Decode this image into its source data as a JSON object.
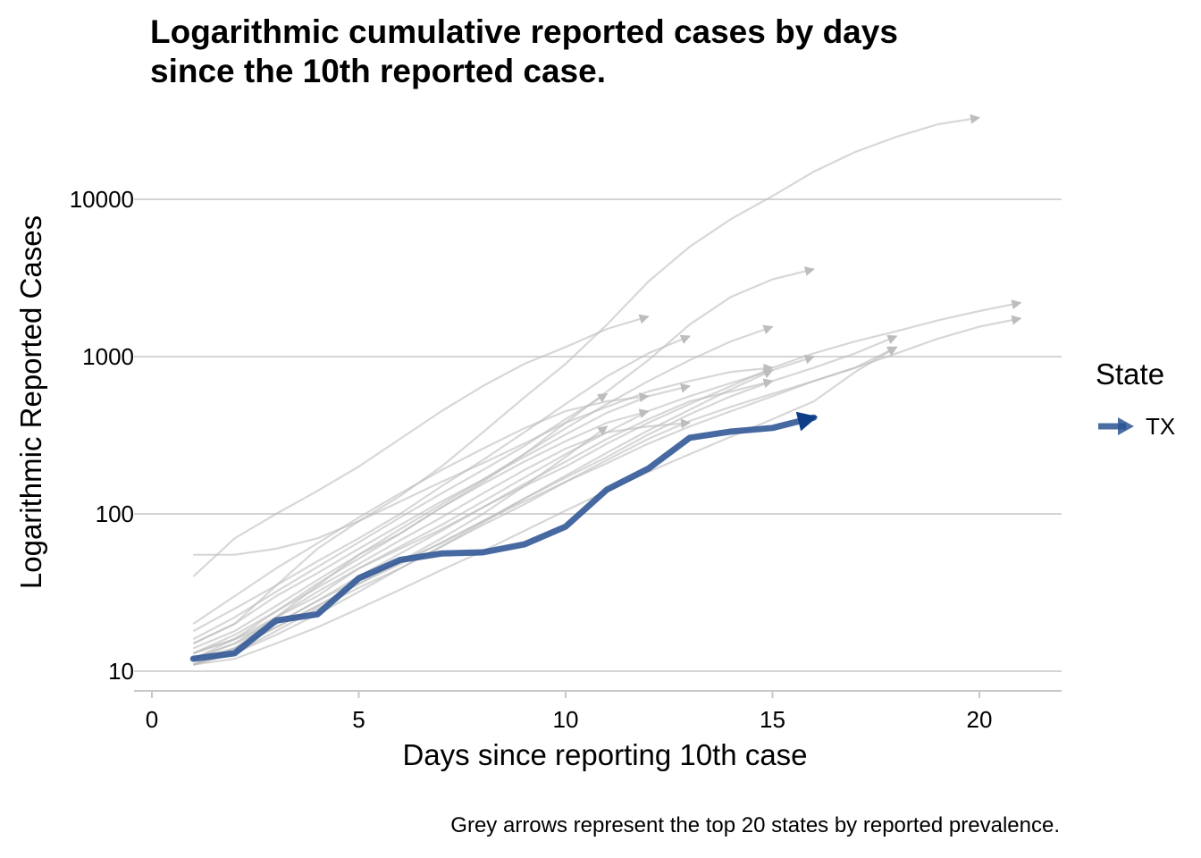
{
  "title_line1": "Logarithmic cumulative reported cases by days",
  "title_line2": "since the 10th reported case.",
  "caption": "Grey arrows represent the top 20 states by reported prevalence.",
  "legend": {
    "title": "State",
    "items": [
      {
        "label": "TX",
        "color": "#2c5494"
      }
    ]
  },
  "chart_data": {
    "type": "line",
    "title": "Logarithmic cumulative reported cases by days since the 10th reported case.",
    "xlabel": "Days since reporting 10th case",
    "ylabel": "Logarithmic Reported Cases",
    "x_ticks": [
      0,
      5,
      10,
      15,
      20
    ],
    "y_ticks": [
      10,
      100,
      1000,
      10000
    ],
    "y_scale": "log10",
    "xlim": [
      0,
      22
    ],
    "ylim": [
      7.9,
      30000
    ],
    "grid": "horizontal major",
    "legend_position": "right",
    "highlight": {
      "name": "TX",
      "color": "#2c5494",
      "x": [
        1,
        2,
        3,
        4,
        5,
        6,
        7,
        8,
        9,
        10,
        11,
        12,
        13,
        14,
        15,
        16
      ],
      "y": [
        12,
        13,
        21,
        23,
        39,
        51,
        56,
        57,
        64,
        83,
        143,
        194,
        305,
        334,
        352,
        410
      ]
    },
    "background_series": [
      {
        "x": [
          1,
          2,
          3,
          4,
          5,
          6,
          7,
          8,
          9,
          10,
          11,
          12,
          13,
          14,
          15,
          16,
          17,
          18,
          19,
          20
        ],
        "y": [
          15,
          20,
          35,
          60,
          90,
          130,
          200,
          330,
          550,
          900,
          1600,
          3000,
          5000,
          7500,
          10500,
          15000,
          20000,
          25000,
          30000,
          33000
        ]
      },
      {
        "x": [
          1,
          2,
          3,
          4,
          5,
          6,
          7,
          8,
          9,
          10,
          11,
          12,
          13,
          14,
          15,
          16
        ],
        "y": [
          11,
          14,
          22,
          35,
          55,
          75,
          110,
          160,
          240,
          380,
          600,
          950,
          1600,
          2400,
          3100,
          3600
        ]
      },
      {
        "x": [
          1,
          2,
          3,
          4,
          5,
          6,
          7,
          8,
          9,
          10,
          11,
          12,
          13,
          14,
          15,
          16,
          17,
          18,
          19,
          20,
          21
        ],
        "y": [
          12,
          15,
          22,
          30,
          45,
          60,
          80,
          110,
          150,
          200,
          280,
          380,
          500,
          650,
          850,
          1050,
          1250,
          1450,
          1700,
          1950,
          2200
        ]
      },
      {
        "x": [
          1,
          2,
          3,
          4,
          5,
          6,
          7,
          8,
          9,
          10,
          11,
          12,
          13,
          14,
          15,
          16,
          17,
          18,
          19,
          20,
          21
        ],
        "y": [
          13,
          16,
          20,
          28,
          38,
          50,
          65,
          90,
          120,
          160,
          210,
          280,
          360,
          450,
          560,
          700,
          850,
          1050,
          1300,
          1550,
          1750
        ]
      },
      {
        "x": [
          1,
          2,
          3,
          4,
          5,
          6,
          7,
          8,
          9,
          10,
          11,
          12,
          13,
          14,
          15,
          16,
          17,
          18
        ],
        "y": [
          11,
          13,
          18,
          25,
          34,
          45,
          62,
          85,
          115,
          160,
          220,
          300,
          390,
          480,
          580,
          700,
          850,
          1150
        ]
      },
      {
        "x": [
          1,
          2,
          3,
          4,
          5,
          6,
          7,
          8,
          9,
          10,
          11,
          12,
          13,
          14,
          15,
          16,
          17,
          18
        ],
        "y": [
          12,
          14,
          19,
          26,
          36,
          48,
          66,
          90,
          125,
          170,
          230,
          320,
          430,
          560,
          700,
          850,
          1050,
          1350
        ]
      },
      {
        "x": [
          1,
          2,
          3,
          4,
          5,
          6,
          7,
          8,
          9,
          10,
          11,
          12
        ],
        "y": [
          40,
          70,
          100,
          140,
          200,
          300,
          450,
          650,
          900,
          1150,
          1500,
          1800
        ]
      },
      {
        "x": [
          1,
          2,
          3,
          4,
          5,
          6,
          7,
          8,
          9,
          10,
          11,
          12,
          13,
          14,
          15,
          16
        ],
        "y": [
          13,
          16,
          22,
          32,
          45,
          62,
          85,
          120,
          170,
          240,
          330,
          450,
          560,
          680,
          820,
          1000
        ]
      },
      {
        "x": [
          1,
          2,
          3,
          4,
          5,
          6,
          7,
          8,
          9,
          10,
          11,
          12,
          13
        ],
        "y": [
          18,
          25,
          35,
          50,
          70,
          100,
          150,
          220,
          330,
          500,
          750,
          1050,
          1350
        ]
      },
      {
        "x": [
          1,
          2,
          3,
          4,
          5,
          6,
          7,
          8,
          9,
          10,
          11,
          12,
          13,
          14,
          15
        ],
        "y": [
          14,
          18,
          26,
          38,
          55,
          80,
          115,
          165,
          240,
          350,
          500,
          700,
          950,
          1250,
          1550
        ]
      },
      {
        "x": [
          1,
          2,
          3,
          4,
          5,
          6,
          7,
          8,
          9,
          10,
          11,
          12,
          13,
          14,
          15
        ],
        "y": [
          11,
          13,
          17,
          23,
          32,
          45,
          62,
          88,
          125,
          175,
          245,
          340,
          460,
          620,
          820
        ]
      },
      {
        "x": [
          1,
          2,
          3,
          4,
          5,
          6,
          7,
          8,
          9,
          10,
          11,
          12,
          13
        ],
        "y": [
          15,
          20,
          30,
          42,
          60,
          85,
          120,
          165,
          230,
          320,
          440,
          560,
          650
        ]
      },
      {
        "x": [
          1,
          2,
          3,
          4,
          5,
          6,
          7,
          8,
          9,
          10,
          11,
          12
        ],
        "y": [
          20,
          30,
          45,
          65,
          95,
          135,
          190,
          260,
          350,
          450,
          520,
          560
        ]
      },
      {
        "x": [
          1,
          2,
          3,
          4,
          5,
          6,
          7,
          8,
          9,
          10,
          11,
          12
        ],
        "y": [
          12,
          16,
          24,
          36,
          52,
          75,
          110,
          155,
          215,
          290,
          380,
          450
        ]
      },
      {
        "x": [
          1,
          2,
          3,
          4,
          5,
          6,
          7,
          8,
          9,
          10,
          11
        ],
        "y": [
          16,
          22,
          32,
          46,
          66,
          95,
          135,
          190,
          270,
          400,
          580
        ]
      },
      {
        "x": [
          1,
          2,
          3,
          4,
          5,
          6,
          7,
          8,
          9,
          10,
          11
        ],
        "y": [
          11,
          14,
          19,
          26,
          36,
          50,
          70,
          100,
          150,
          230,
          360
        ]
      },
      {
        "x": [
          1,
          2,
          3,
          4,
          5,
          6,
          7,
          8,
          9,
          10,
          11,
          12,
          13
        ],
        "y": [
          13,
          17,
          24,
          34,
          48,
          68,
          95,
          135,
          190,
          260,
          330,
          360,
          380
        ]
      },
      {
        "x": [
          1,
          2,
          3,
          4,
          5,
          6,
          7,
          8,
          9,
          10,
          11,
          12,
          13,
          14,
          15
        ],
        "y": [
          12,
          15,
          20,
          28,
          40,
          56,
          78,
          110,
          155,
          215,
          300,
          400,
          520,
          600,
          700
        ]
      },
      {
        "x": [
          1,
          2,
          3,
          4,
          5,
          6,
          7,
          8,
          9,
          10,
          11,
          12,
          13,
          14,
          15
        ],
        "y": [
          55,
          55,
          60,
          70,
          90,
          120,
          160,
          210,
          280,
          380,
          480,
          600,
          700,
          800,
          850
        ]
      },
      {
        "x": [
          1,
          2,
          3,
          4,
          5,
          6,
          7,
          8,
          9,
          10,
          11,
          12,
          13,
          14,
          15,
          16,
          17,
          18
        ],
        "y": [
          11,
          12,
          15,
          19,
          25,
          33,
          44,
          58,
          78,
          105,
          140,
          185,
          240,
          310,
          400,
          520,
          800,
          1150
        ]
      }
    ]
  }
}
